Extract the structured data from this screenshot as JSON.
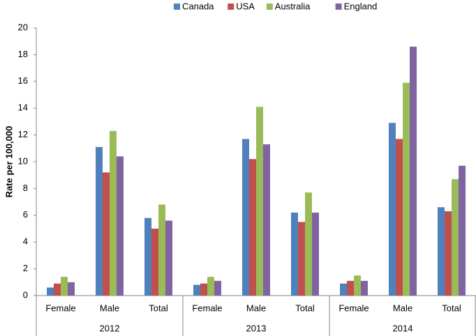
{
  "chart_data": {
    "type": "bar",
    "y_label": "Rate per 100,000",
    "categories": [
      "Female",
      "Male",
      "Total",
      "Female",
      "Male",
      "Total",
      "Female",
      "Male",
      "Total"
    ],
    "groups": [
      "2012",
      "2013",
      "2014"
    ],
    "series": [
      {
        "name": "Canada",
        "color": "#4f81bd",
        "values": [
          0.6,
          11.1,
          5.8,
          0.8,
          11.7,
          6.2,
          0.9,
          12.9,
          6.6
        ]
      },
      {
        "name": "USA",
        "color": "#c0504d",
        "values": [
          0.9,
          9.2,
          5.0,
          0.9,
          10.2,
          5.5,
          1.1,
          11.7,
          6.3
        ]
      },
      {
        "name": "Australia",
        "color": "#9bbb59",
        "values": [
          1.4,
          12.3,
          6.8,
          1.4,
          14.1,
          7.7,
          1.5,
          15.9,
          8.7
        ]
      },
      {
        "name": "England",
        "color": "#8064a2",
        "values": [
          1.0,
          10.4,
          5.6,
          1.1,
          11.3,
          6.2,
          1.1,
          18.6,
          9.7
        ]
      }
    ],
    "ylim": [
      0,
      20
    ],
    "yticks": [
      0,
      2,
      4,
      6,
      8,
      10,
      12,
      14,
      16,
      18,
      20
    ],
    "grid": false,
    "legend": "top"
  }
}
